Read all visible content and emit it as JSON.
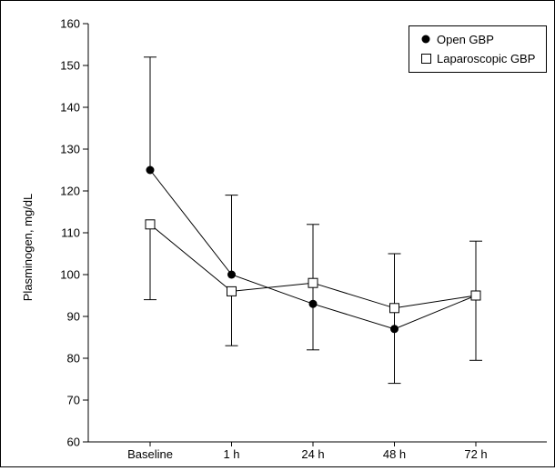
{
  "chart_data": {
    "type": "line",
    "title": "",
    "xlabel": "",
    "ylabel": "Plasminogen, mg/dL",
    "categories": [
      "Baseline",
      "1 h",
      "24 h",
      "48 h",
      "72 h"
    ],
    "ylim": [
      60,
      160
    ],
    "yticks": [
      "60",
      "70",
      "80",
      "90",
      "100",
      "110",
      "120",
      "130",
      "140",
      "150",
      "160"
    ],
    "grid": false,
    "legend_position": "top-right",
    "series": [
      {
        "name": "Open GBP",
        "marker": "filled-circle",
        "color": "#000000",
        "values": [
          125,
          100,
          93,
          87,
          95
        ],
        "error_plus": [
          27,
          19,
          19,
          18,
          13
        ]
      },
      {
        "name": "Laparoscopic GBP",
        "marker": "open-square",
        "color": "#000000",
        "values": [
          112,
          96,
          98,
          92,
          95
        ],
        "error_minus": [
          18,
          13,
          16,
          18,
          15.5
        ]
      }
    ]
  }
}
